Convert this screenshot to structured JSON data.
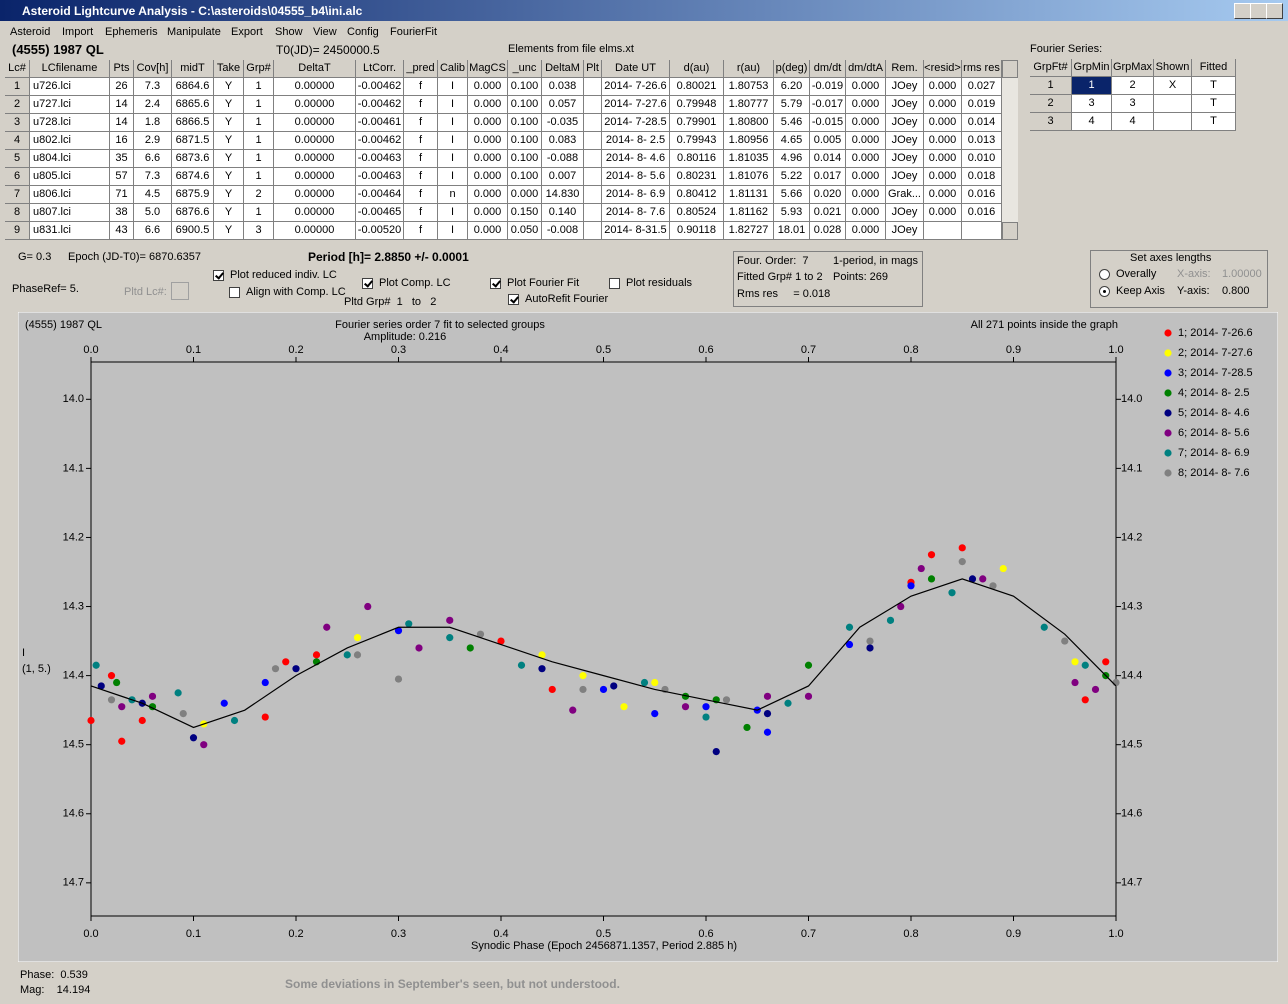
{
  "window_title": "Asteroid Lightcurve Analysis - C:\\asteroids\\04555_b4\\ini.alc",
  "menu": [
    "Asteroid",
    "Import",
    "Ephemeris",
    "Manipulate",
    "Export",
    "Show",
    "View",
    "Config",
    "FourierFit"
  ],
  "header": {
    "object": "(4555) 1987 QL",
    "t0": "T0(JD)= 2450000.5",
    "elements": "Elements from file elms.xt"
  },
  "lc_table": {
    "columns": [
      "Lc#",
      "LCfilename",
      "Pts",
      "Cov[h]",
      "midT",
      "Take",
      "Grp#",
      "DeltaT",
      "LtCorr.",
      "_pred",
      "Calib",
      "MagCS",
      "_unc",
      "DeltaM",
      "Plt",
      "Date UT",
      "d(au)",
      "r(au)",
      "p(deg)",
      "dm/dt",
      "dm/dtA",
      "Rem.",
      "<resid>",
      "rms res"
    ],
    "rows": [
      [
        "1",
        "u726.lci",
        "26",
        "7.3",
        "6864.6",
        "Y",
        "1",
        "0.00000",
        "-0.00462",
        "f",
        "I",
        "0.000",
        "0.100",
        "0.038",
        null,
        "2014- 7-26.6",
        "0.80021",
        "1.80753",
        "6.20",
        "-0.019",
        "0.000",
        "JOey",
        "0.000",
        "0.027"
      ],
      [
        "2",
        "u727.lci",
        "14",
        "2.4",
        "6865.6",
        "Y",
        "1",
        "0.00000",
        "-0.00462",
        "f",
        "I",
        "0.000",
        "0.100",
        "0.057",
        null,
        "2014- 7-27.6",
        "0.79948",
        "1.80777",
        "5.79",
        "-0.017",
        "0.000",
        "JOey",
        "0.000",
        "0.019"
      ],
      [
        "3",
        "u728.lci",
        "14",
        "1.8",
        "6866.5",
        "Y",
        "1",
        "0.00000",
        "-0.00461",
        "f",
        "I",
        "0.000",
        "0.100",
        "-0.035",
        null,
        "2014- 7-28.5",
        "0.79901",
        "1.80800",
        "5.46",
        "-0.015",
        "0.000",
        "JOey",
        "0.000",
        "0.014"
      ],
      [
        "4",
        "u802.lci",
        "16",
        "2.9",
        "6871.5",
        "Y",
        "1",
        "0.00000",
        "-0.00462",
        "f",
        "I",
        "0.000",
        "0.100",
        "0.083",
        null,
        "2014- 8- 2.5",
        "0.79943",
        "1.80956",
        "4.65",
        "0.005",
        "0.000",
        "JOey",
        "0.000",
        "0.013"
      ],
      [
        "5",
        "u804.lci",
        "35",
        "6.6",
        "6873.6",
        "Y",
        "1",
        "0.00000",
        "-0.00463",
        "f",
        "I",
        "0.000",
        "0.100",
        "-0.088",
        null,
        "2014- 8- 4.6",
        "0.80116",
        "1.81035",
        "4.96",
        "0.014",
        "0.000",
        "JOey",
        "0.000",
        "0.010"
      ],
      [
        "6",
        "u805.lci",
        "57",
        "7.3",
        "6874.6",
        "Y",
        "1",
        "0.00000",
        "-0.00463",
        "f",
        "I",
        "0.000",
        "0.100",
        "0.007",
        null,
        "2014- 8- 5.6",
        "0.80231",
        "1.81076",
        "5.22",
        "0.017",
        "0.000",
        "JOey",
        "0.000",
        "0.018"
      ],
      [
        "7",
        "u806.lci",
        "71",
        "4.5",
        "6875.9",
        "Y",
        "2",
        "0.00000",
        "-0.00464",
        "f",
        "n",
        "0.000",
        "0.000",
        "14.830",
        null,
        "2014- 8- 6.9",
        "0.80412",
        "1.81131",
        "5.66",
        "0.020",
        "0.000",
        "Grak...",
        "0.000",
        "0.016"
      ],
      [
        "8",
        "u807.lci",
        "38",
        "5.0",
        "6876.6",
        "Y",
        "1",
        "0.00000",
        "-0.00465",
        "f",
        "I",
        "0.000",
        "0.150",
        "0.140",
        null,
        "2014- 8- 7.6",
        "0.80524",
        "1.81162",
        "5.93",
        "0.021",
        "0.000",
        "JOey",
        "0.000",
        "0.016"
      ],
      [
        "9",
        "u831.lci",
        "43",
        "6.6",
        "6900.5",
        "Y",
        "3",
        "0.00000",
        "-0.00520",
        "f",
        "I",
        "0.000",
        "0.050",
        "-0.008",
        null,
        "2014- 8-31.5",
        "0.90118",
        "1.82727",
        "18.01",
        "0.028",
        "0.000",
        "JOey",
        null,
        null
      ]
    ]
  },
  "fourier_table": {
    "label": "Fourier Series:",
    "columns": [
      "GrpFt#",
      "GrpMin",
      "GrpMax",
      "Shown",
      "Fitted"
    ],
    "rows": [
      [
        "1",
        "1",
        "2",
        "X",
        "T"
      ],
      [
        "2",
        "3",
        "3",
        null,
        "T"
      ],
      [
        "3",
        "4",
        "4",
        null,
        "T"
      ]
    ]
  },
  "controls": {
    "g": "G= 0.3",
    "epoch": "Epoch (JD-T0)= 6870.6357",
    "period": "Period [h]= 2.8850 +/- 0.0001",
    "phaseref": "PhaseRef= 5.",
    "pltd_lc": "Pltd Lc#:",
    "pltd_grp": "Pltd Grp#  1   to   2",
    "checkboxes": [
      {
        "label": "Plot reduced indiv. LC",
        "checked": true
      },
      {
        "label": "Align with Comp. LC",
        "checked": false
      },
      {
        "label": "Plot Comp. LC",
        "checked": true
      },
      {
        "label": "Plot Fourier Fit",
        "checked": true
      },
      {
        "label": "AutoRefit Fourier",
        "checked": true
      },
      {
        "label": "Plot residuals",
        "checked": false
      }
    ],
    "info": [
      "Four. Order:  7",
      "1-period, in mags",
      "Fitted Grp# 1 to 2",
      "Points: 269",
      "Rms res     = 0.018"
    ],
    "axes": {
      "title": "Set axes lengths",
      "radios": [
        {
          "label": "Overally",
          "checked": false
        },
        {
          "label": "Keep Axis",
          "checked": true
        }
      ],
      "x_label": "X-axis:",
      "x_value": "1.00000",
      "y_label": "Y-axis:",
      "y_value": "0.800"
    }
  },
  "chart_data": {
    "type": "scatter",
    "title": "Fourier series order 7 fit to selected groups",
    "subtitle": "Amplitude: 0.216",
    "object": "(4555) 1987 QL",
    "note": "All 271 points inside the graph",
    "xlabel": "Synodic Phase (Epoch 2456871.1357, Period 2.885 h)",
    "ylabel": [
      "I",
      "(1, 5.)"
    ],
    "xlim": [
      0,
      1
    ],
    "ylim": [
      13.946,
      14.748
    ],
    "y_inverted": true,
    "xticks": [
      {
        "value": 0,
        "label": "0.0"
      },
      0.1,
      0.2,
      0.3,
      0.4,
      0.5,
      0.6,
      0.7,
      0.8,
      0.9,
      {
        "value": 1,
        "label": "1.0"
      }
    ],
    "yticks": [
      {
        "value": 14,
        "label": "14.0"
      },
      14.1,
      14.2,
      14.3,
      14.4,
      14.5,
      14.6,
      14.7
    ],
    "legend": "right",
    "series": [
      {
        "name": "1; 2014- 7-26.6",
        "color": "#ff0000",
        "x": [
          0.0,
          0.02,
          0.03,
          0.05,
          0.17,
          0.19,
          0.22,
          0.4,
          0.45,
          0.8,
          0.82,
          0.85,
          0.97,
          0.99
        ],
        "values": [
          14.465,
          14.4,
          14.495,
          14.465,
          14.46,
          14.38,
          14.37,
          14.35,
          14.42,
          14.265,
          14.225,
          14.215,
          14.435,
          14.38
        ]
      },
      {
        "name": "2; 2014- 7-27.6",
        "color": "#ffff00",
        "x": [
          0.11,
          0.26,
          0.44,
          0.48,
          0.52,
          0.55,
          0.89,
          0.96
        ],
        "values": [
          14.47,
          14.345,
          14.37,
          14.4,
          14.445,
          14.41,
          14.245,
          14.38
        ]
      },
      {
        "name": "3; 2014- 7-28.5",
        "color": "#0000ff",
        "x": [
          0.13,
          0.17,
          0.3,
          0.5,
          0.55,
          0.6,
          0.65,
          0.66,
          0.74,
          0.8
        ],
        "values": [
          14.44,
          14.41,
          14.335,
          14.42,
          14.455,
          14.445,
          14.45,
          14.482,
          14.355,
          14.27
        ]
      },
      {
        "name": "4; 2014- 8- 2.5",
        "color": "#008000",
        "x": [
          0.025,
          0.06,
          0.22,
          0.37,
          0.58,
          0.61,
          0.64,
          0.7,
          0.82,
          0.99
        ],
        "values": [
          14.41,
          14.445,
          14.38,
          14.36,
          14.43,
          14.435,
          14.475,
          14.385,
          14.26,
          14.4
        ]
      },
      {
        "name": "5; 2014- 8- 4.6",
        "color": "#000080",
        "x": [
          0.01,
          0.05,
          0.1,
          0.2,
          0.44,
          0.51,
          0.61,
          0.66,
          0.76,
          0.86
        ],
        "values": [
          14.415,
          14.44,
          14.49,
          14.39,
          14.39,
          14.415,
          14.51,
          14.455,
          14.36,
          14.26
        ]
      },
      {
        "name": "6; 2014- 8- 5.6",
        "color": "#800080",
        "x": [
          0.03,
          0.06,
          0.11,
          0.23,
          0.27,
          0.32,
          0.35,
          0.47,
          0.58,
          0.66,
          0.7,
          0.79,
          0.81,
          0.87,
          0.96,
          0.98
        ],
        "values": [
          14.445,
          14.43,
          14.5,
          14.33,
          14.3,
          14.36,
          14.32,
          14.45,
          14.445,
          14.43,
          14.43,
          14.3,
          14.245,
          14.26,
          14.41,
          14.42
        ]
      },
      {
        "name": "7; 2014- 8- 6.9",
        "color": "#008080",
        "x": [
          0.005,
          0.04,
          0.085,
          0.14,
          0.25,
          0.31,
          0.35,
          0.42,
          0.54,
          0.6,
          0.68,
          0.74,
          0.78,
          0.84,
          0.93,
          0.97
        ],
        "values": [
          14.385,
          14.435,
          14.425,
          14.465,
          14.37,
          14.325,
          14.345,
          14.385,
          14.41,
          14.46,
          14.44,
          14.33,
          14.32,
          14.28,
          14.33,
          14.385
        ]
      },
      {
        "name": "8; 2014- 8- 7.6",
        "color": "#808080",
        "x": [
          0.02,
          0.09,
          0.18,
          0.26,
          0.3,
          0.38,
          0.48,
          0.56,
          0.62,
          0.76,
          0.85,
          0.88,
          0.95,
          1.0
        ],
        "values": [
          14.435,
          14.455,
          14.39,
          14.37,
          14.405,
          14.34,
          14.42,
          14.42,
          14.435,
          14.35,
          14.235,
          14.27,
          14.35,
          14.41
        ]
      }
    ],
    "fit_curve": {
      "color": "#000000",
      "x": [
        0,
        0.05,
        0.1,
        0.15,
        0.2,
        0.25,
        0.3,
        0.35,
        0.4,
        0.45,
        0.5,
        0.55,
        0.6,
        0.65,
        0.7,
        0.75,
        0.8,
        0.85,
        0.9,
        0.95,
        1.0
      ],
      "values": [
        14.415,
        14.44,
        14.475,
        14.45,
        14.4,
        14.36,
        14.33,
        14.33,
        14.355,
        14.38,
        14.4,
        14.42,
        14.435,
        14.45,
        14.415,
        14.33,
        14.285,
        14.26,
        14.285,
        14.34,
        14.415
      ]
    }
  },
  "footer": {
    "phase": "Phase:  0.539",
    "mag": "Mag:    14.194",
    "note": "Some deviations in September's seen, but not understood."
  }
}
